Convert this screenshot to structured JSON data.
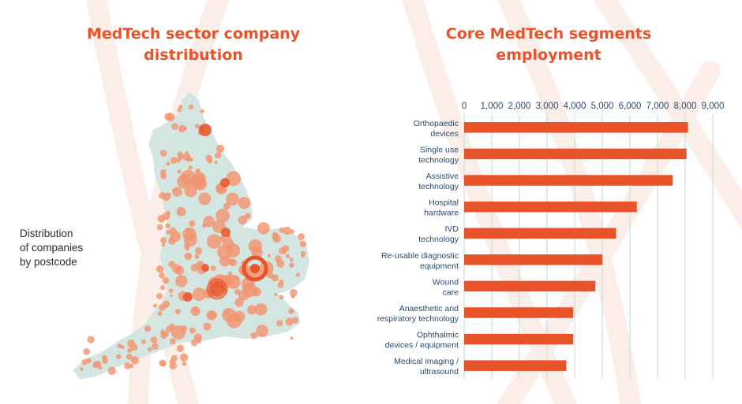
{
  "left_panel": {
    "title_lines": [
      "MedTech sector company",
      "distribution"
    ],
    "caption_lines": [
      "Distribution",
      "of companies",
      "by postcode"
    ]
  },
  "chart_data": {
    "type": "bar",
    "orientation": "horizontal",
    "title_lines": [
      "Core MedTech segments",
      "employment"
    ],
    "categories": [
      [
        "Orthopaedic",
        "devices"
      ],
      [
        "Single use",
        "technology"
      ],
      [
        "Assistive",
        "technology"
      ],
      [
        "Hospital",
        "hardware"
      ],
      [
        "IVD",
        "technology"
      ],
      [
        "Re-usable diagnostic",
        "equipment"
      ],
      [
        "Wound",
        "care"
      ],
      [
        "Anaesthetic and",
        "respiratory technology"
      ],
      [
        "Ophthalmic",
        "devices / equipment"
      ],
      [
        "Medical imaging /",
        "ultrasound"
      ]
    ],
    "values": [
      8100,
      8050,
      7550,
      6250,
      5500,
      5000,
      4750,
      3950,
      3950,
      3700
    ],
    "xlim": [
      0,
      9000
    ],
    "ticks": [
      "0",
      "1,000",
      "2,000",
      "3,000",
      "4,000",
      "5,000",
      "6,000",
      "7,000",
      "8,000",
      "9,000"
    ],
    "tick_values": [
      0,
      1000,
      2000,
      3000,
      4000,
      5000,
      6000,
      7000,
      8000,
      9000
    ],
    "axis_position": "top",
    "grid": true,
    "bar_color": "#e8532a",
    "grid_color": "#b9dcd4"
  },
  "colors": {
    "accent": "#e8532a",
    "map_fill": "#d4e6e2",
    "dot": "#f2936f",
    "dot_dark": "#e8532a"
  }
}
